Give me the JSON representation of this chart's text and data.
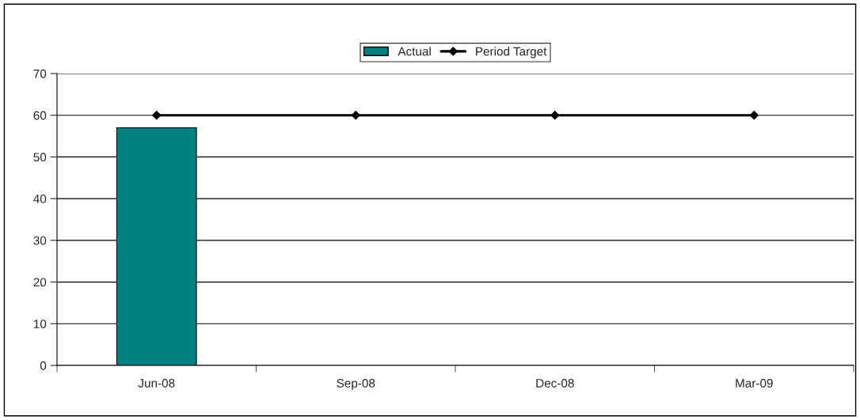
{
  "chart_data": {
    "type": "bar",
    "categories": [
      "Jun-08",
      "Sep-08",
      "Dec-08",
      "Mar-09"
    ],
    "series": [
      {
        "name": "Actual",
        "color": "#008080",
        "values": [
          57,
          null,
          null,
          null
        ]
      },
      {
        "name": "Period Target",
        "type": "line",
        "color": "#000000",
        "marker": "diamond",
        "values": [
          60,
          60,
          60,
          60
        ]
      }
    ],
    "ylim": [
      0,
      70
    ],
    "yticks": [
      0,
      10,
      20,
      30,
      40,
      50,
      60,
      70
    ],
    "grid": "y",
    "legend": "top"
  }
}
